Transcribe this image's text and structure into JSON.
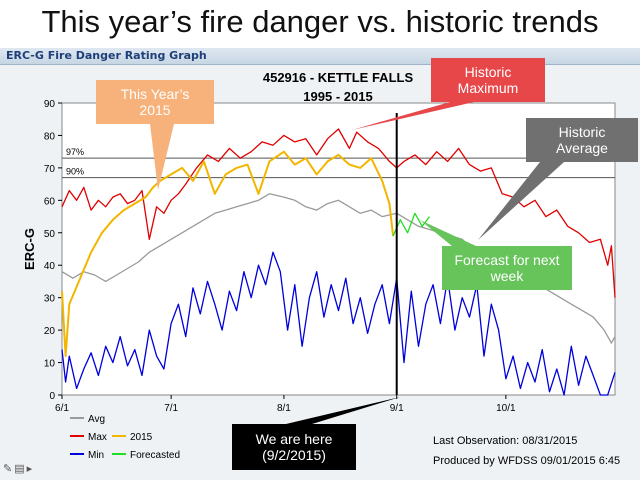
{
  "slide": {
    "title": "This year’s fire danger vs. historic trends"
  },
  "graph_window": {
    "title": "ERC-G Fire Danger Rating Graph"
  },
  "toolbar": {
    "icons": [
      "pen-icon",
      "slide-menu-icon",
      "next-icon"
    ]
  },
  "colors": {
    "max": "#e00000",
    "this_year": "#f2b600",
    "min": "#0000dd",
    "avg": "#9a9a9a",
    "forecast": "#22dd22",
    "current_line": "#000000"
  },
  "callouts": {
    "this_year": {
      "text": "This Year’s 2015",
      "color": "#f6b27a"
    },
    "historic_max": {
      "text": "Historic Maximum",
      "color": "#e8474a"
    },
    "historic_avg": {
      "text": "Historic Average",
      "color": "#707070"
    },
    "forecast": {
      "text": "Forecast for next week",
      "color": "#66c45a"
    },
    "we_are_here": {
      "text": "We are here (9/2/2015)",
      "color": "#000000"
    }
  },
  "chart_data": {
    "type": "line",
    "title": "452916 - KETTLE FALLS",
    "subtitle": "1995 - 2015",
    "ylabel": "ERC-G",
    "xlabel": "",
    "ylim": [
      0,
      90
    ],
    "xlim": [
      "2015-06-01",
      "2015-10-31"
    ],
    "y_ticks": [
      0,
      10,
      20,
      30,
      40,
      50,
      60,
      70,
      80,
      90
    ],
    "x_ticks": [
      {
        "date": "2015-06-01",
        "label": "6/1"
      },
      {
        "date": "2015-07-01",
        "label": "7/1"
      },
      {
        "date": "2015-08-01",
        "label": "8/1"
      },
      {
        "date": "2015-09-01",
        "label": "9/1"
      },
      {
        "date": "2015-10-01",
        "label": "10/1"
      }
    ],
    "grid": false,
    "reference_lines": [
      {
        "label": "97%",
        "value": 73
      },
      {
        "label": "90%",
        "value": 67
      }
    ],
    "current_date": "2015-09-01",
    "legend": {
      "placement": "bottom",
      "entries": [
        {
          "key": "avg",
          "label": "Avg"
        },
        {
          "key": "max",
          "label": "Max"
        },
        {
          "key": "this_year",
          "label": "2015"
        },
        {
          "key": "min",
          "label": "Min"
        },
        {
          "key": "forecast",
          "label": "Forecasted"
        }
      ]
    },
    "footer": {
      "last_observation": "Last Observation:  08/31/2015",
      "produced_by": "Produced by WFDSS  09/01/2015  6:45"
    },
    "series": [
      {
        "key": "max",
        "name": "Max",
        "points": [
          [
            "2015-06-01",
            58
          ],
          [
            "2015-06-03",
            63
          ],
          [
            "2015-06-05",
            60
          ],
          [
            "2015-06-07",
            64
          ],
          [
            "2015-06-09",
            57
          ],
          [
            "2015-06-11",
            60
          ],
          [
            "2015-06-13",
            58
          ],
          [
            "2015-06-15",
            61
          ],
          [
            "2015-06-17",
            62
          ],
          [
            "2015-06-19",
            59
          ],
          [
            "2015-06-21",
            60
          ],
          [
            "2015-06-23",
            63
          ],
          [
            "2015-06-25",
            48
          ],
          [
            "2015-06-27",
            58
          ],
          [
            "2015-06-29",
            56
          ],
          [
            "2015-07-01",
            60
          ],
          [
            "2015-07-03",
            62
          ],
          [
            "2015-07-05",
            65
          ],
          [
            "2015-07-08",
            70
          ],
          [
            "2015-07-11",
            74
          ],
          [
            "2015-07-14",
            72
          ],
          [
            "2015-07-17",
            76
          ],
          [
            "2015-07-20",
            73
          ],
          [
            "2015-07-23",
            75
          ],
          [
            "2015-07-26",
            78
          ],
          [
            "2015-07-29",
            77
          ],
          [
            "2015-08-01",
            80
          ],
          [
            "2015-08-04",
            78
          ],
          [
            "2015-08-07",
            79
          ],
          [
            "2015-08-10",
            74
          ],
          [
            "2015-08-13",
            79
          ],
          [
            "2015-08-16",
            82
          ],
          [
            "2015-08-19",
            76
          ],
          [
            "2015-08-21",
            81
          ],
          [
            "2015-08-24",
            78
          ],
          [
            "2015-08-27",
            76
          ],
          [
            "2015-08-30",
            72
          ],
          [
            "2015-09-01",
            70
          ],
          [
            "2015-09-03",
            72
          ],
          [
            "2015-09-06",
            74
          ],
          [
            "2015-09-09",
            71
          ],
          [
            "2015-09-12",
            75
          ],
          [
            "2015-09-15",
            72
          ],
          [
            "2015-09-18",
            76
          ],
          [
            "2015-09-21",
            71
          ],
          [
            "2015-09-24",
            69
          ],
          [
            "2015-09-27",
            70
          ],
          [
            "2015-09-30",
            62
          ],
          [
            "2015-10-03",
            61
          ],
          [
            "2015-10-06",
            58
          ],
          [
            "2015-10-09",
            60
          ],
          [
            "2015-10-12",
            55
          ],
          [
            "2015-10-15",
            57
          ],
          [
            "2015-10-18",
            52
          ],
          [
            "2015-10-21",
            50
          ],
          [
            "2015-10-24",
            47
          ],
          [
            "2015-10-27",
            48
          ],
          [
            "2015-10-29",
            40
          ],
          [
            "2015-10-30",
            46
          ],
          [
            "2015-10-31",
            30
          ]
        ]
      },
      {
        "key": "this_year",
        "name": "2015",
        "points": [
          [
            "2015-06-01",
            32
          ],
          [
            "2015-06-02",
            12
          ],
          [
            "2015-06-03",
            28
          ],
          [
            "2015-06-06",
            36
          ],
          [
            "2015-06-09",
            44
          ],
          [
            "2015-06-12",
            50
          ],
          [
            "2015-06-15",
            54
          ],
          [
            "2015-06-18",
            57
          ],
          [
            "2015-06-21",
            59
          ],
          [
            "2015-06-24",
            61
          ],
          [
            "2015-06-26",
            64
          ],
          [
            "2015-06-28",
            66
          ],
          [
            "2015-07-01",
            68
          ],
          [
            "2015-07-04",
            70
          ],
          [
            "2015-07-07",
            66
          ],
          [
            "2015-07-10",
            72
          ],
          [
            "2015-07-13",
            62
          ],
          [
            "2015-07-16",
            68
          ],
          [
            "2015-07-19",
            70
          ],
          [
            "2015-07-22",
            71
          ],
          [
            "2015-07-25",
            62
          ],
          [
            "2015-07-28",
            72
          ],
          [
            "2015-08-01",
            75
          ],
          [
            "2015-08-04",
            71
          ],
          [
            "2015-08-07",
            73
          ],
          [
            "2015-08-10",
            68
          ],
          [
            "2015-08-13",
            72
          ],
          [
            "2015-08-16",
            74
          ],
          [
            "2015-08-19",
            71
          ],
          [
            "2015-08-22",
            70
          ],
          [
            "2015-08-25",
            73
          ],
          [
            "2015-08-28",
            66
          ],
          [
            "2015-08-30",
            59
          ],
          [
            "2015-08-31",
            49
          ]
        ]
      },
      {
        "key": "avg",
        "name": "Avg",
        "points": [
          [
            "2015-06-01",
            38
          ],
          [
            "2015-06-04",
            36
          ],
          [
            "2015-06-07",
            38
          ],
          [
            "2015-06-10",
            37
          ],
          [
            "2015-06-13",
            35
          ],
          [
            "2015-06-16",
            37
          ],
          [
            "2015-06-19",
            39
          ],
          [
            "2015-06-22",
            41
          ],
          [
            "2015-06-25",
            44
          ],
          [
            "2015-06-28",
            46
          ],
          [
            "2015-07-01",
            48
          ],
          [
            "2015-07-04",
            50
          ],
          [
            "2015-07-07",
            52
          ],
          [
            "2015-07-10",
            54
          ],
          [
            "2015-07-13",
            56
          ],
          [
            "2015-07-16",
            57
          ],
          [
            "2015-07-19",
            58
          ],
          [
            "2015-07-22",
            59
          ],
          [
            "2015-07-25",
            60
          ],
          [
            "2015-07-28",
            62
          ],
          [
            "2015-08-01",
            61
          ],
          [
            "2015-08-04",
            60
          ],
          [
            "2015-08-07",
            58
          ],
          [
            "2015-08-10",
            57
          ],
          [
            "2015-08-13",
            59
          ],
          [
            "2015-08-16",
            60
          ],
          [
            "2015-08-19",
            58
          ],
          [
            "2015-08-22",
            56
          ],
          [
            "2015-08-25",
            57
          ],
          [
            "2015-08-28",
            55
          ],
          [
            "2015-09-01",
            56
          ],
          [
            "2015-09-04",
            54
          ],
          [
            "2015-09-07",
            52
          ],
          [
            "2015-09-10",
            51
          ],
          [
            "2015-09-13",
            50
          ],
          [
            "2015-09-16",
            49
          ],
          [
            "2015-09-19",
            48
          ],
          [
            "2015-09-22",
            45
          ],
          [
            "2015-09-25",
            44
          ],
          [
            "2015-09-28",
            42
          ],
          [
            "2015-10-01",
            40
          ],
          [
            "2015-10-04",
            38
          ],
          [
            "2015-10-07",
            35
          ],
          [
            "2015-10-10",
            34
          ],
          [
            "2015-10-13",
            32
          ],
          [
            "2015-10-16",
            30
          ],
          [
            "2015-10-19",
            28
          ],
          [
            "2015-10-22",
            26
          ],
          [
            "2015-10-25",
            24
          ],
          [
            "2015-10-28",
            20
          ],
          [
            "2015-10-30",
            16
          ],
          [
            "2015-10-31",
            18
          ]
        ]
      },
      {
        "key": "min",
        "name": "Min",
        "points": [
          [
            "2015-06-01",
            14
          ],
          [
            "2015-06-02",
            4
          ],
          [
            "2015-06-03",
            12
          ],
          [
            "2015-06-05",
            2
          ],
          [
            "2015-06-07",
            8
          ],
          [
            "2015-06-09",
            13
          ],
          [
            "2015-06-11",
            6
          ],
          [
            "2015-06-13",
            15
          ],
          [
            "2015-06-15",
            10
          ],
          [
            "2015-06-17",
            18
          ],
          [
            "2015-06-19",
            9
          ],
          [
            "2015-06-21",
            14
          ],
          [
            "2015-06-23",
            6
          ],
          [
            "2015-06-25",
            20
          ],
          [
            "2015-06-27",
            12
          ],
          [
            "2015-06-29",
            8
          ],
          [
            "2015-07-01",
            22
          ],
          [
            "2015-07-03",
            28
          ],
          [
            "2015-07-05",
            18
          ],
          [
            "2015-07-07",
            33
          ],
          [
            "2015-07-09",
            25
          ],
          [
            "2015-07-11",
            35
          ],
          [
            "2015-07-13",
            28
          ],
          [
            "2015-07-15",
            20
          ],
          [
            "2015-07-17",
            32
          ],
          [
            "2015-07-19",
            26
          ],
          [
            "2015-07-21",
            38
          ],
          [
            "2015-07-23",
            30
          ],
          [
            "2015-07-25",
            40
          ],
          [
            "2015-07-27",
            34
          ],
          [
            "2015-07-29",
            44
          ],
          [
            "2015-07-31",
            38
          ],
          [
            "2015-08-02",
            20
          ],
          [
            "2015-08-04",
            34
          ],
          [
            "2015-08-06",
            15
          ],
          [
            "2015-08-08",
            30
          ],
          [
            "2015-08-10",
            38
          ],
          [
            "2015-08-12",
            24
          ],
          [
            "2015-08-14",
            34
          ],
          [
            "2015-08-16",
            26
          ],
          [
            "2015-08-18",
            36
          ],
          [
            "2015-08-20",
            22
          ],
          [
            "2015-08-22",
            30
          ],
          [
            "2015-08-24",
            19
          ],
          [
            "2015-08-26",
            28
          ],
          [
            "2015-08-28",
            34
          ],
          [
            "2015-08-30",
            22
          ],
          [
            "2015-09-01",
            36
          ],
          [
            "2015-09-03",
            10
          ],
          [
            "2015-09-05",
            32
          ],
          [
            "2015-09-07",
            15
          ],
          [
            "2015-09-09",
            28
          ],
          [
            "2015-09-11",
            34
          ],
          [
            "2015-09-13",
            22
          ],
          [
            "2015-09-15",
            36
          ],
          [
            "2015-09-17",
            20
          ],
          [
            "2015-09-19",
            30
          ],
          [
            "2015-09-21",
            24
          ],
          [
            "2015-09-23",
            34
          ],
          [
            "2015-09-25",
            12
          ],
          [
            "2015-09-27",
            28
          ],
          [
            "2015-09-29",
            20
          ],
          [
            "2015-10-01",
            5
          ],
          [
            "2015-10-03",
            12
          ],
          [
            "2015-10-05",
            2
          ],
          [
            "2015-10-07",
            10
          ],
          [
            "2015-10-09",
            4
          ],
          [
            "2015-10-11",
            14
          ],
          [
            "2015-10-13",
            1
          ],
          [
            "2015-10-15",
            8
          ],
          [
            "2015-10-17",
            0
          ],
          [
            "2015-10-19",
            15
          ],
          [
            "2015-10-21",
            3
          ],
          [
            "2015-10-23",
            12
          ],
          [
            "2015-10-25",
            6
          ],
          [
            "2015-10-27",
            0
          ],
          [
            "2015-10-29",
            0
          ],
          [
            "2015-10-31",
            7
          ]
        ]
      },
      {
        "key": "forecast",
        "name": "Forecasted",
        "points": [
          [
            "2015-08-31",
            49
          ],
          [
            "2015-09-02",
            54
          ],
          [
            "2015-09-04",
            50
          ],
          [
            "2015-09-06",
            56
          ],
          [
            "2015-09-08",
            52
          ],
          [
            "2015-09-10",
            55
          ]
        ]
      }
    ]
  }
}
